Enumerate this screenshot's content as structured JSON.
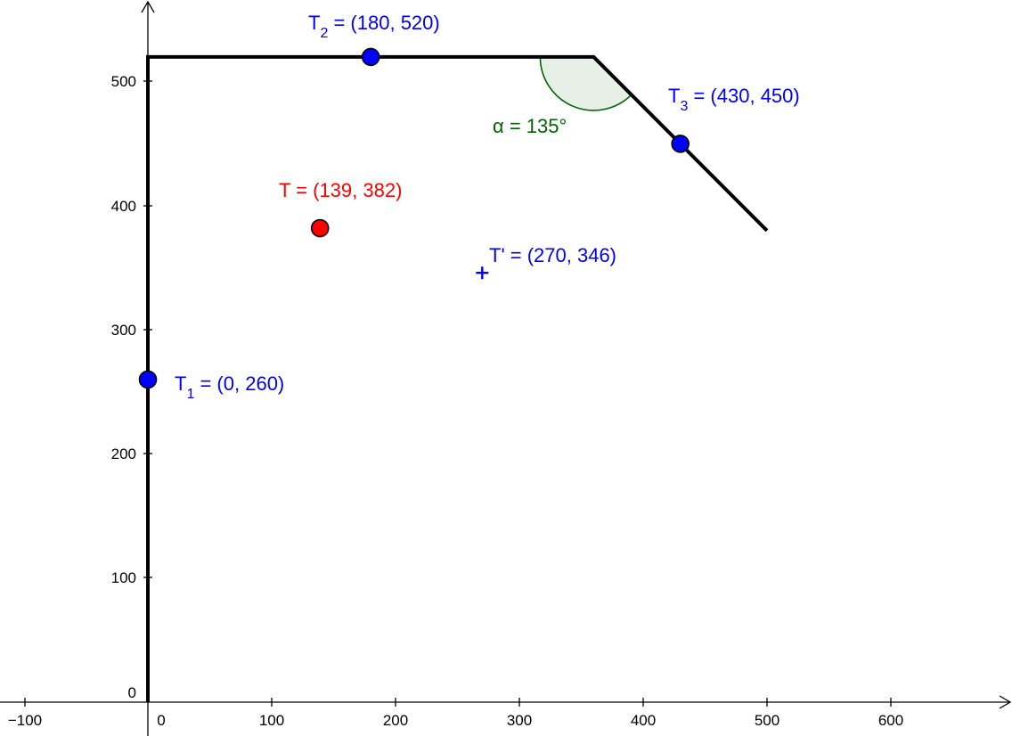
{
  "axes": {
    "x_ticks": [
      "−100",
      "0",
      "100",
      "200",
      "300",
      "400",
      "500",
      "600"
    ],
    "y_ticks": [
      "0",
      "100",
      "200",
      "300",
      "400",
      "500"
    ]
  },
  "path_vertices": [
    [
      0,
      0
    ],
    [
      0,
      520
    ],
    [
      360,
      520
    ],
    [
      500,
      380
    ]
  ],
  "points": [
    {
      "id": "T1",
      "x": 0,
      "y": 260,
      "name": "T",
      "sub": "1",
      "coord_text": " = (0, 260)",
      "color": "#0000ff"
    },
    {
      "id": "T2",
      "x": 180,
      "y": 520,
      "name": "T",
      "sub": "2",
      "coord_text": " = (180, 520)",
      "color": "#0000ff"
    },
    {
      "id": "T3",
      "x": 430,
      "y": 450,
      "name": "T",
      "sub": "3",
      "coord_text": " = (430, 450)",
      "color": "#0000ff"
    },
    {
      "id": "T",
      "x": 139,
      "y": 382,
      "name": "T",
      "sub": "",
      "coord_text": " = (139, 382)",
      "color": "#ff0000"
    }
  ],
  "t_prime": {
    "x": 270,
    "y": 346,
    "label": "T' = (270, 346)",
    "color": "#0000ff"
  },
  "angle": {
    "label": "α = 135°",
    "value_deg": 135,
    "color": "#006400",
    "fill": "#e6f0e6"
  }
}
